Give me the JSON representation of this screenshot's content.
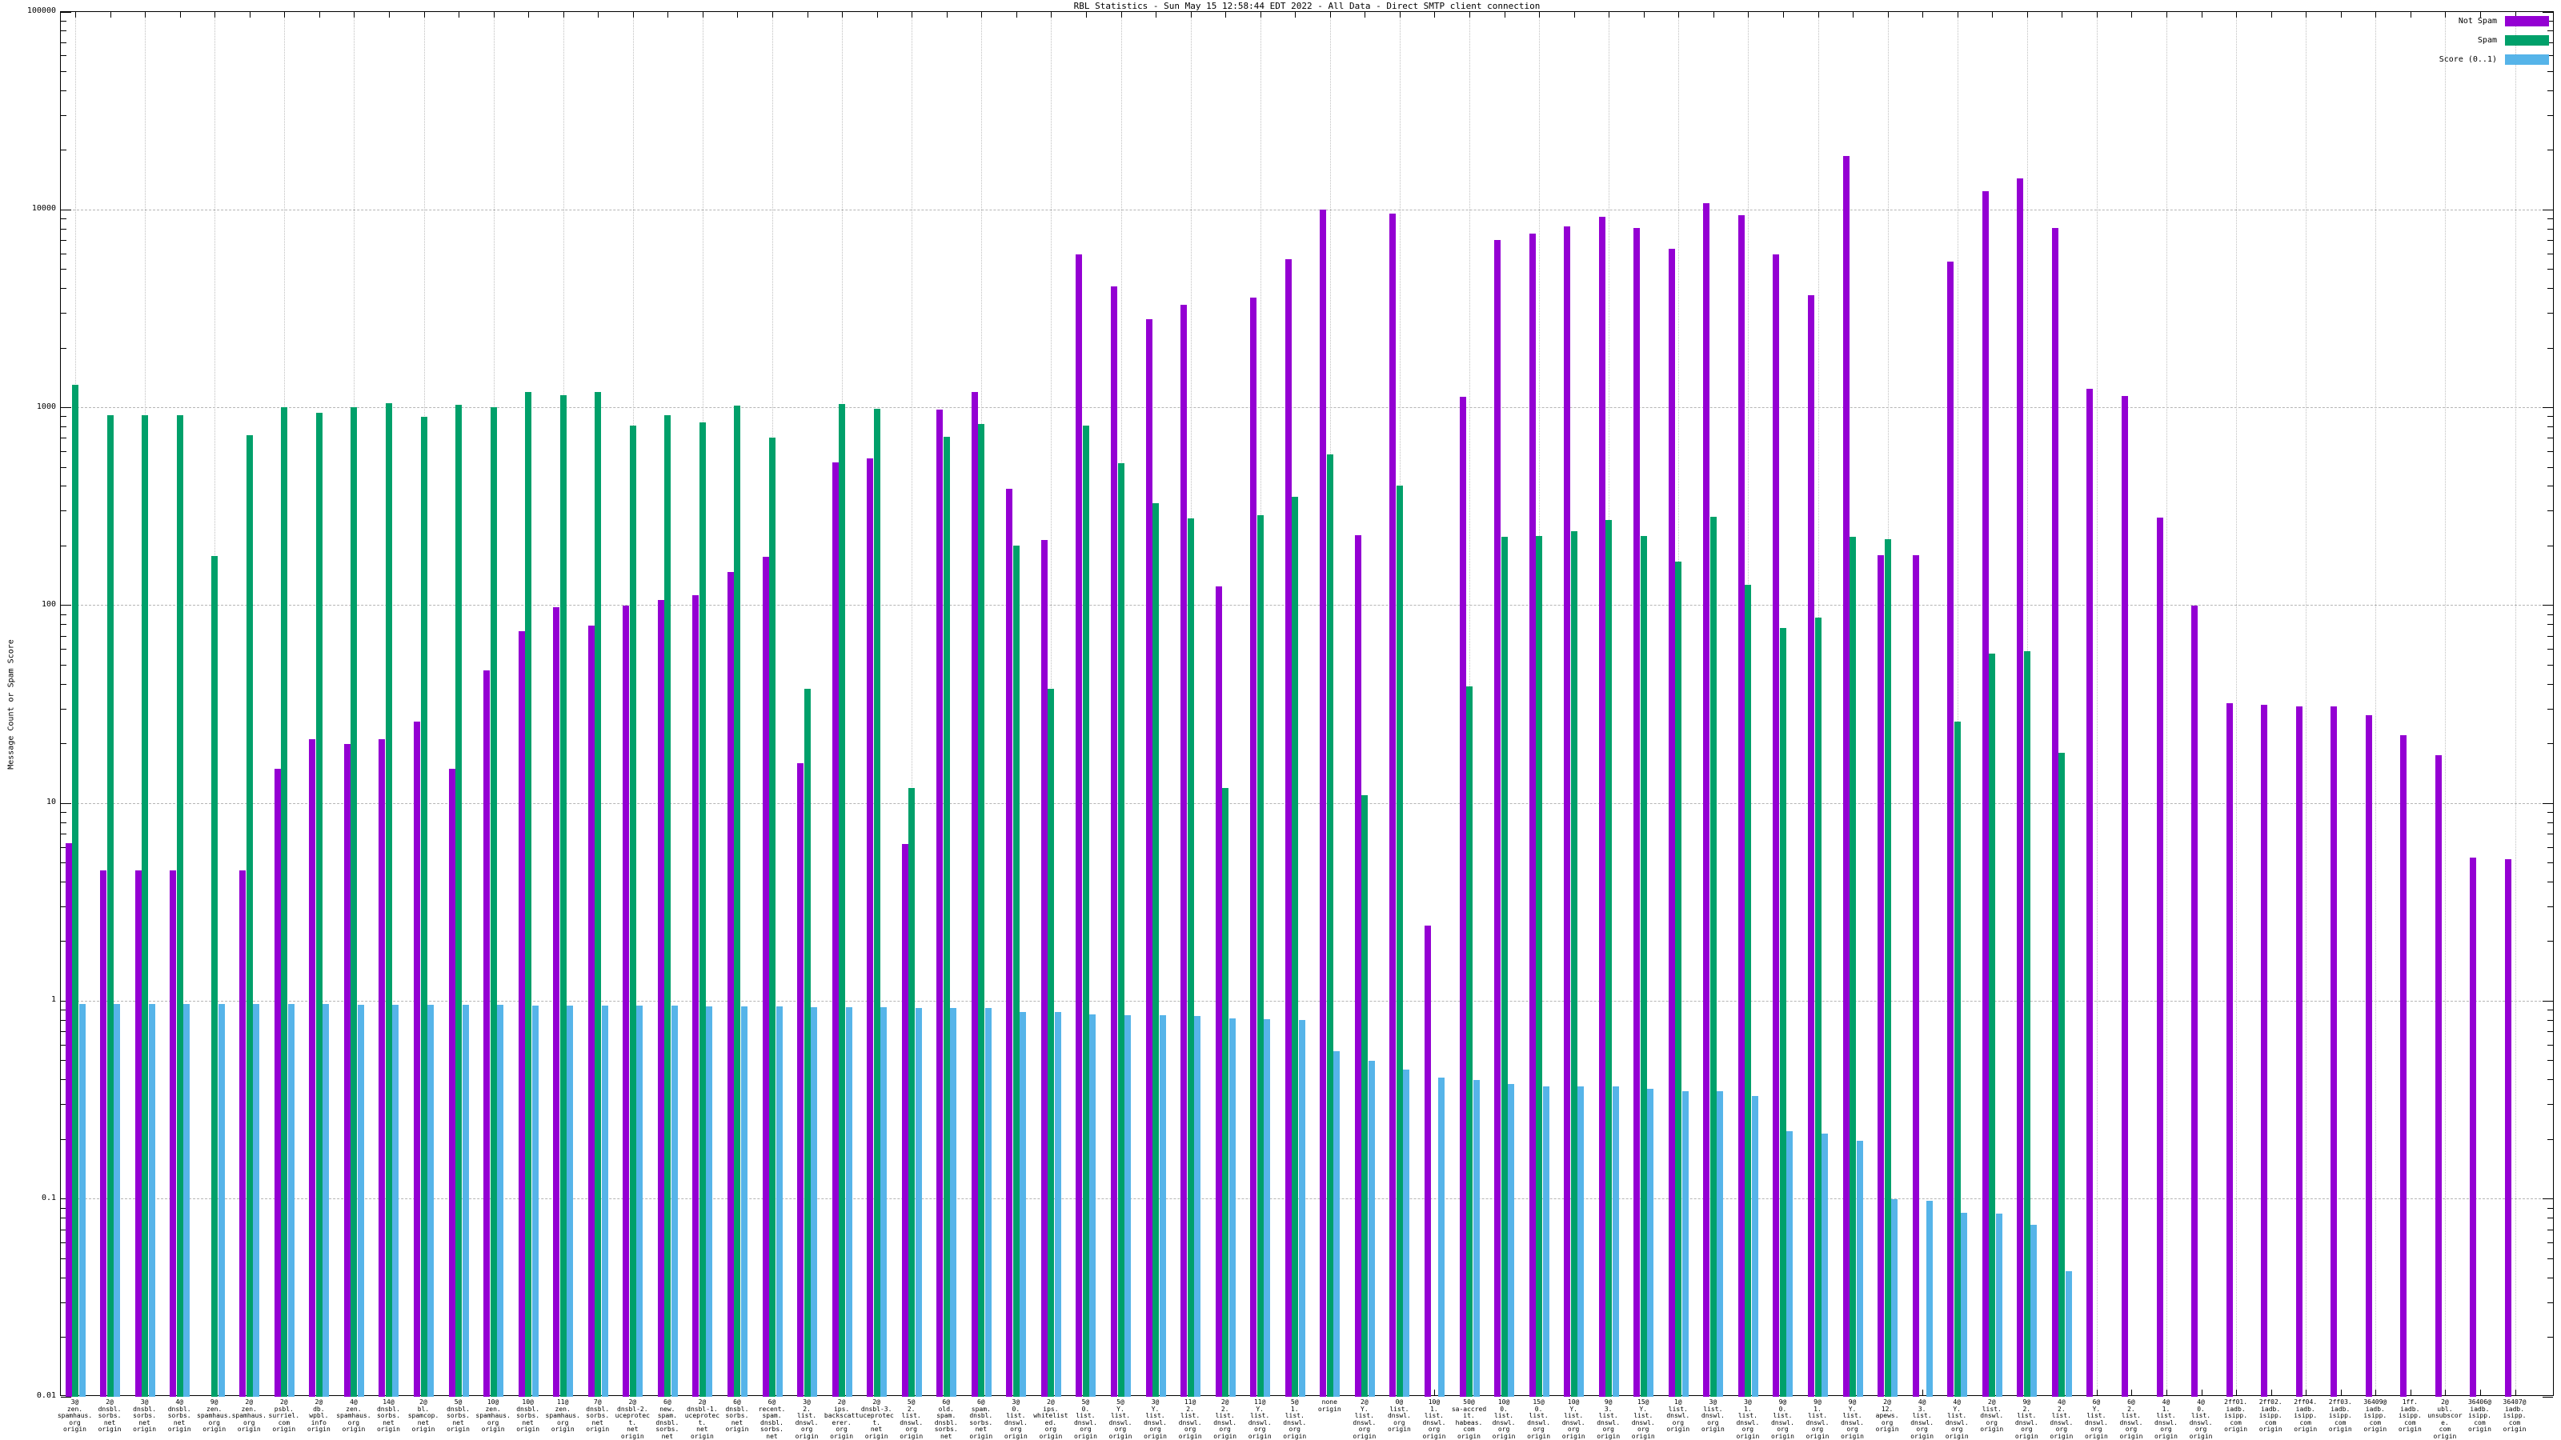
{
  "title": "RBL Statistics - Sun May 15 12:58:44 EDT 2022 - All Data - Direct SMTP client connection",
  "y_axis": {
    "label": "Message Count or Spam Score",
    "tick_labels": [
      "100000",
      "10000",
      "1000",
      "100",
      "10",
      "1",
      "0.1",
      "0.01"
    ]
  },
  "legend": {
    "items": [
      {
        "label": "Not Spam",
        "color": "#9400d3"
      },
      {
        "label": "Spam",
        "color": "#00a06a"
      },
      {
        "label": "Score (0..1)",
        "color": "#56b4e9"
      }
    ]
  },
  "chart_data": {
    "type": "bar",
    "log_scale_y": true,
    "ylim": [
      0.01,
      100000
    ],
    "grid": true,
    "legend_position": "top-right",
    "series_names": [
      "Not Spam",
      "Spam",
      "Score (0..1)"
    ],
    "series_colors": {
      "not_spam": "#9400d3",
      "spam": "#00a06a",
      "score": "#56b4e9"
    },
    "groups": [
      {
        "label": "3@\nzen.\nspamhaus.\norg\norigin",
        "not_spam": 6.3,
        "spam": 1300,
        "score": 0.97
      },
      {
        "label": "2@\ndnsbl.\nsorbs.\nnet\norigin",
        "not_spam": 4.6,
        "spam": 920,
        "score": 0.97
      },
      {
        "label": "3@\ndnsbl.\nsorbs.\nnet\norigin",
        "not_spam": 4.6,
        "spam": 920,
        "score": 0.97
      },
      {
        "label": "4@\ndnsbl.\nsorbs.\nnet\norigin",
        "not_spam": 4.6,
        "spam": 920,
        "score": 0.97
      },
      {
        "label": "9@\nzen.\nspamhaus.\norg\norigin",
        "not_spam": null,
        "spam": 178,
        "score": 0.97
      },
      {
        "label": "2@\nzen.\nspamhaus.\norg\norigin",
        "not_spam": 4.6,
        "spam": 725,
        "score": 0.97
      },
      {
        "label": "2@\npsbl.\nsurriel.\ncom\norigin",
        "not_spam": 15,
        "spam": 1010,
        "score": 0.97
      },
      {
        "label": "2@\ndb.\nwpbl.\ninfo\norigin",
        "not_spam": 21,
        "spam": 940,
        "score": 0.97
      },
      {
        "label": "4@\nzen.\nspamhaus.\norg\norigin",
        "not_spam": 20,
        "spam": 1005,
        "score": 0.96
      },
      {
        "label": "14@\ndnsbl.\nsorbs.\nnet\norigin",
        "not_spam": 21,
        "spam": 1055,
        "score": 0.96
      },
      {
        "label": "2@\nbl.\nspamcop.\nnet\norigin",
        "not_spam": 26,
        "spam": 900,
        "score": 0.96
      },
      {
        "label": "5@\ndnsbl.\nsorbs.\nnet\norigin",
        "not_spam": 15,
        "spam": 1030,
        "score": 0.96
      },
      {
        "label": "10@\nzen.\nspamhaus.\norg\norigin",
        "not_spam": 47,
        "spam": 1005,
        "score": 0.96
      },
      {
        "label": "10@\ndnsbl.\nsorbs.\nnet\norigin",
        "not_spam": 74,
        "spam": 1205,
        "score": 0.95
      },
      {
        "label": "11@\nzen.\nspamhaus.\norg\norigin",
        "not_spam": 98,
        "spam": 1155,
        "score": 0.95
      },
      {
        "label": "7@\ndnsbl.\nsorbs.\nnet\norigin",
        "not_spam": 79,
        "spam": 1195,
        "score": 0.95
      },
      {
        "label": "2@\ndnsbl-2.\nuceprotect.\nnet\norigin",
        "not_spam": 100,
        "spam": 815,
        "score": 0.95
      },
      {
        "label": "6@\nnew.\nspam.\ndnsbl.\nsorbs.\nnet\norigin",
        "not_spam": 107,
        "spam": 920,
        "score": 0.95
      },
      {
        "label": "2@\ndnsbl-1.\nuceprotect.\nnet\norigin",
        "not_spam": 113,
        "spam": 840,
        "score": 0.94
      },
      {
        "label": "6@\ndnsbl.\nsorbs.\nnet\norigin",
        "not_spam": 147,
        "spam": 1020,
        "score": 0.94
      },
      {
        "label": "6@\nrecent.\nspam.\ndnsbl.\nsorbs.\nnet\norigin",
        "not_spam": 176,
        "spam": 705,
        "score": 0.94
      },
      {
        "label": "3@\n2.\nlist.\ndnswl.\norg\norigin",
        "not_spam": 16,
        "spam": 38,
        "score": 0.93
      },
      {
        "label": "2@\nips.\nbackscatterer.\norg\norigin",
        "not_spam": 530,
        "spam": 1040,
        "score": 0.93
      },
      {
        "label": "2@\ndnsbl-3.\nuceprotect.\nnet\norigin",
        "not_spam": 553,
        "spam": 990,
        "score": 0.93
      },
      {
        "label": "5@\n2.\nlist.\ndnswl.\norg\norigin",
        "not_spam": 6.2,
        "spam": 12,
        "score": 0.92
      },
      {
        "label": "6@\nold.\nspam.\ndnsbl.\nsorbs.\nnet\norigin",
        "not_spam": 980,
        "spam": 712,
        "score": 0.92
      },
      {
        "label": "6@\nspam.\ndnsbl.\nsorbs.\nnet\norigin",
        "not_spam": 1195,
        "spam": 830,
        "score": 0.92
      },
      {
        "label": "3@\n0.\nlist.\ndnswl.\norg\norigin",
        "not_spam": 390,
        "spam": 200,
        "score": 0.88
      },
      {
        "label": "2@\nips.\nwhitelisted.\norg\norigin",
        "not_spam": 214,
        "spam": 38,
        "score": 0.88
      },
      {
        "label": "5@\n0.\nlist.\ndnswl.\norg\norigin",
        "not_spam": 5960,
        "spam": 813,
        "score": 0.86
      },
      {
        "label": "5@\nY.\nlist.\ndnswl.\norg\norigin",
        "not_spam": 4100,
        "spam": 523,
        "score": 0.85
      },
      {
        "label": "3@\nY.\nlist.\ndnswl.\norg\norigin",
        "not_spam": 2810,
        "spam": 330,
        "score": 0.85
      },
      {
        "label": "11@\n2.\nlist.\ndnswl.\norg\norigin",
        "not_spam": 3300,
        "spam": 276,
        "score": 0.84
      },
      {
        "label": "2@\n2.\nlist.\ndnswl.\norg\norigin",
        "not_spam": 125,
        "spam": 12,
        "score": 0.82
      },
      {
        "label": "11@\nY.\nlist.\ndnswl.\norg\norigin",
        "not_spam": 3590,
        "spam": 287,
        "score": 0.81
      },
      {
        "label": "5@\n1.\nlist.\ndnswl.\norg\norigin",
        "not_spam": 5630,
        "spam": 355,
        "score": 0.8
      },
      {
        "label": "none\norigin",
        "not_spam": 10030,
        "spam": 580,
        "score": 0.56
      },
      {
        "label": "2@\nY.\nlist.\ndnswl.\norg\norigin",
        "not_spam": 227,
        "spam": 11,
        "score": 0.5
      },
      {
        "label": "0@\nlist.\ndnswl.\norg\norigin",
        "not_spam": 9540,
        "spam": 402,
        "score": 0.45
      },
      {
        "label": "10@\n1.\nlist.\ndnswl.\norg\norigin",
        "not_spam": 2.4,
        "spam": null,
        "score": 0.41
      },
      {
        "label": "50@\nsa-accredit.\nhabeas.\ncom\norigin",
        "not_spam": 1130,
        "spam": 39,
        "score": 0.4
      },
      {
        "label": "10@\n0.\nlist.\ndnswl.\norg\norigin",
        "not_spam": 7070,
        "spam": 222,
        "score": 0.38
      },
      {
        "label": "15@\n0.\nlist.\ndnswl.\norg\norigin",
        "not_spam": 7610,
        "spam": 224,
        "score": 0.37
      },
      {
        "label": "10@\nY.\nlist.\ndnswl.\norg\norigin",
        "not_spam": 8230,
        "spam": 237,
        "score": 0.37
      },
      {
        "label": "9@\n3.\nlist.\ndnswl.\norg\norigin",
        "not_spam": 9200,
        "spam": 270,
        "score": 0.37
      },
      {
        "label": "15@\nY.\nlist.\ndnswl.\norg\norigin",
        "not_spam": 8130,
        "spam": 225,
        "score": 0.36
      },
      {
        "label": "1@\nlist.\ndnswl.\norg\norigin",
        "not_spam": 6370,
        "spam": 166,
        "score": 0.35
      },
      {
        "label": "3@\nlist.\ndnswl.\norg\norigin",
        "not_spam": 10760,
        "spam": 281,
        "score": 0.35
      },
      {
        "label": "3@\n1.\nlist.\ndnswl.\norg\norigin",
        "not_spam": 9370,
        "spam": 127,
        "score": 0.33
      },
      {
        "label": "9@\n0.\nlist.\ndnswl.\norg\norigin",
        "not_spam": 5950,
        "spam": 77,
        "score": 0.22
      },
      {
        "label": "9@\n1.\nlist.\ndnswl.\norg\norigin",
        "not_spam": 3690,
        "spam": 87,
        "score": 0.215
      },
      {
        "label": "9@\nY.\nlist.\ndnswl.\norg\norigin",
        "not_spam": 18700,
        "spam": 222,
        "score": 0.196
      },
      {
        "label": "2@\n12.\napews.\norg\norigin",
        "not_spam": 180,
        "spam": 217,
        "score": 0.1
      },
      {
        "label": "4@\n3.\nlist.\ndnswl.\norg\norigin",
        "not_spam": 179,
        "spam": null,
        "score": 0.098
      },
      {
        "label": "4@\nY.\nlist.\ndnswl.\norg\norigin",
        "not_spam": 5450,
        "spam": 26,
        "score": 0.085
      },
      {
        "label": "2@\nlist.\ndnswl.\norg\norigin",
        "not_spam": 12400,
        "spam": 57,
        "score": 0.084
      },
      {
        "label": "9@\n2.\nlist.\ndnswl.\norg\norigin",
        "not_spam": 14400,
        "spam": 59,
        "score": 0.074
      },
      {
        "label": "4@\n2.\nlist.\ndnswl.\norg\norigin",
        "not_spam": 8130,
        "spam": 18,
        "score": 0.043
      },
      {
        "label": "6@\nY.\nlist.\ndnswl.\norg\norigin",
        "not_spam": 1245,
        "spam": null,
        "score": null
      },
      {
        "label": "6@\n2.\nlist.\ndnswl.\norg\norigin",
        "not_spam": 1140,
        "spam": null,
        "score": null
      },
      {
        "label": "4@\n1.\nlist.\ndnswl.\norg\norigin",
        "not_spam": 277,
        "spam": null,
        "score": null
      },
      {
        "label": "4@\n0.\nlist.\ndnswl.\norg\norigin",
        "not_spam": 100,
        "spam": null,
        "score": null
      },
      {
        "label": "2ff01.\niadb.\nisipp.\ncom\norigin",
        "not_spam": 32,
        "spam": null,
        "score": null
      },
      {
        "label": "2ff02.\niadb.\nisipp.\ncom\norigin",
        "not_spam": 31.5,
        "spam": null,
        "score": null
      },
      {
        "label": "2ff04.\niadb.\nisipp.\ncom\norigin",
        "not_spam": 31,
        "spam": null,
        "score": null
      },
      {
        "label": "2ff03.\niadb.\nisipp.\ncom\norigin",
        "not_spam": 31,
        "spam": null,
        "score": null
      },
      {
        "label": "36409@\niadb.\nisipp.\ncom\norigin",
        "not_spam": 28,
        "spam": null,
        "score": null
      },
      {
        "label": "1ff.\niadb.\nisipp.\ncom\norigin",
        "not_spam": 22,
        "spam": null,
        "score": null
      },
      {
        "label": "2@\nubl.\nunsubscore.\ncom\norigin",
        "not_spam": 17.5,
        "spam": null,
        "score": null
      },
      {
        "label": "36406@\niadb.\nisipp.\ncom\norigin",
        "not_spam": 5.3,
        "spam": null,
        "score": null
      },
      {
        "label": "36407@\niadb.\nisipp.\ncom\norigin",
        "not_spam": 5.2,
        "spam": null,
        "score": null
      }
    ]
  }
}
